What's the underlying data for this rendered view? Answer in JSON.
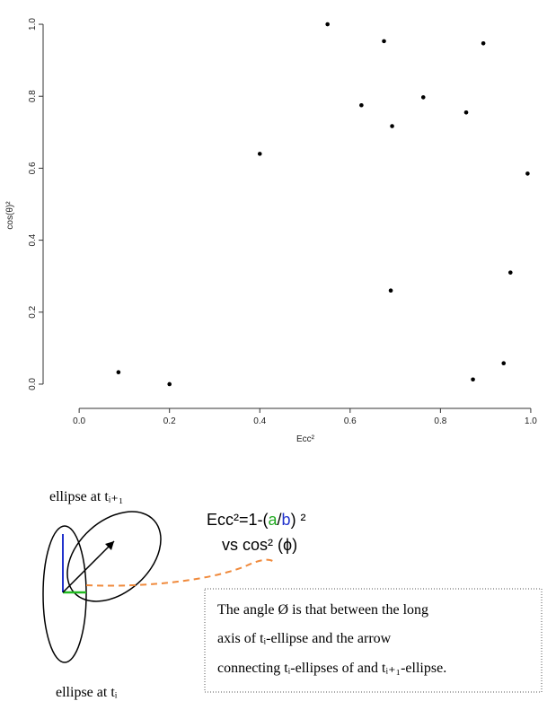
{
  "chart_data": {
    "type": "scatter",
    "xlabel": "Ecc²",
    "ylabel": "cos(θ)²",
    "color": "#000000",
    "x": [
      0.087,
      0.2,
      0.4,
      0.55,
      0.625,
      0.675,
      0.69,
      0.693,
      0.762,
      0.857,
      0.872,
      0.895,
      0.94,
      0.955,
      0.993
    ],
    "values": [
      0.033,
      0.0,
      0.64,
      1.0,
      0.775,
      0.953,
      0.26,
      0.717,
      0.797,
      0.755,
      0.013,
      0.947,
      0.058,
      0.31,
      0.585
    ],
    "xlim": [
      -0.05,
      1.03
    ],
    "ylim": [
      -0.04,
      1.04
    ],
    "xticks": [
      {
        "value": 0,
        "label": "0.0"
      },
      0.2,
      0.4,
      0.6,
      0.8,
      {
        "value": 1,
        "label": "1.0"
      }
    ],
    "yticks": [
      {
        "value": 0,
        "label": "0.0"
      },
      0.2,
      0.4,
      0.6,
      0.8,
      {
        "value": 1,
        "label": "1.0"
      }
    ],
    "grid": false
  },
  "diagram": {
    "upper_label": "ellipse at tᵢ₊₁",
    "lower_label": "ellipse at tᵢ",
    "formula": [
      "Ecc²=1-(",
      "a",
      "/",
      "b",
      ") ²"
    ],
    "formula_line2": "vs cos² (ϕ)",
    "note": [
      "The angle  Ø  is that between the long",
      "axis of tᵢ-ellipse and the arrow",
      "connecting tᵢ-ellipses of and tᵢ₊₁-ellipse."
    ]
  }
}
